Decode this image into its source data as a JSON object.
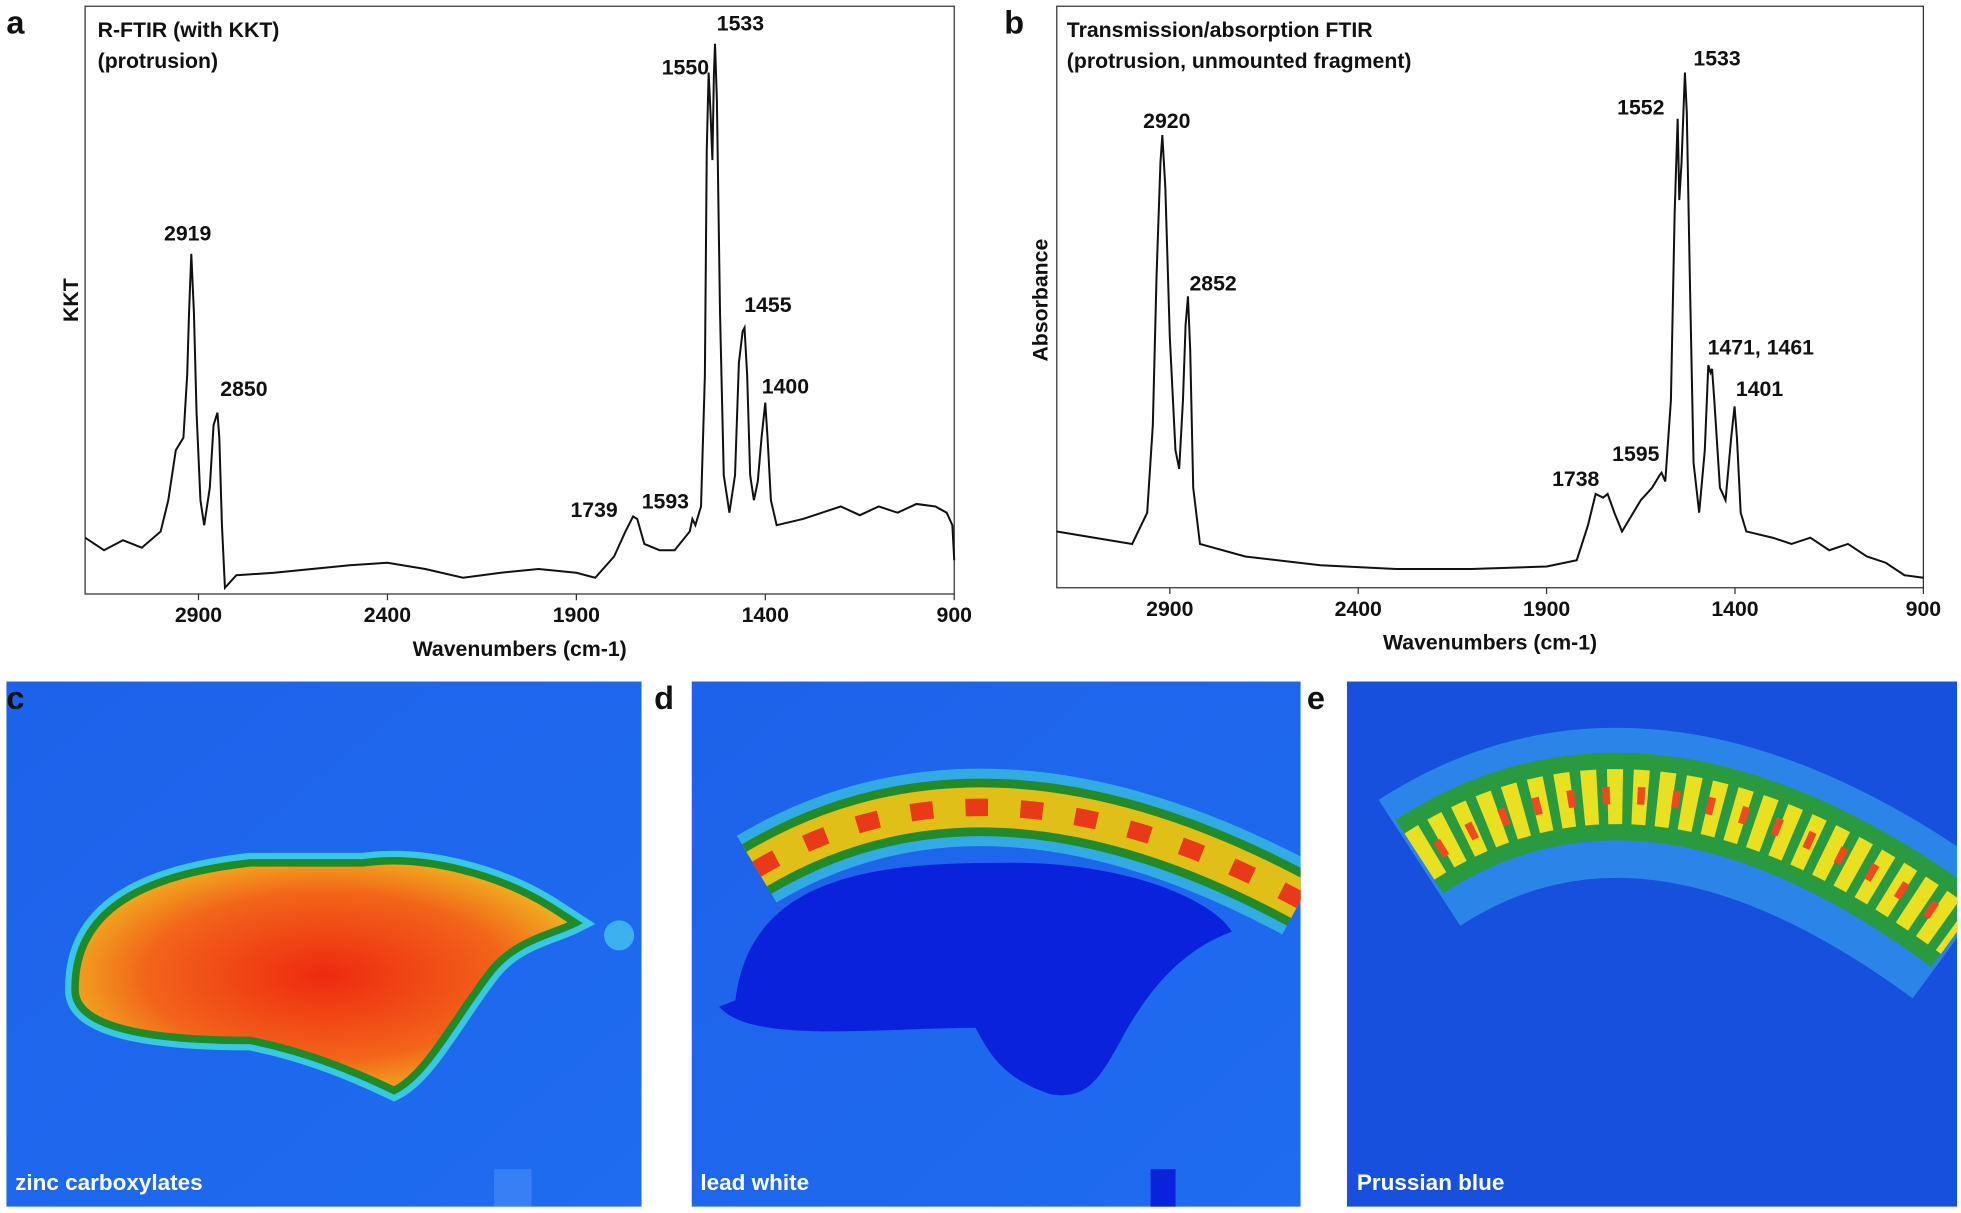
{
  "chart_data": [
    {
      "type": "line",
      "panel": "a",
      "title": [
        "R-FTIR (with KKT)",
        "(protrusion)"
      ],
      "x_label": "Wavenumbers (cm-1)",
      "y_label": "KKT",
      "xlim": [
        3200,
        900
      ],
      "xticks": [
        2900,
        2400,
        1900,
        1400,
        900
      ],
      "ylim": [
        0,
        470
      ],
      "color": "#111111",
      "x": [
        3200,
        3150,
        3100,
        3050,
        3000,
        2980,
        2960,
        2940,
        2930,
        2925,
        2919,
        2912,
        2905,
        2895,
        2885,
        2870,
        2860,
        2850,
        2845,
        2838,
        2830,
        2800,
        2700,
        2600,
        2500,
        2400,
        2300,
        2200,
        2100,
        2000,
        1900,
        1850,
        1800,
        1770,
        1750,
        1739,
        1720,
        1680,
        1640,
        1600,
        1593,
        1585,
        1570,
        1560,
        1555,
        1550,
        1545,
        1540,
        1536,
        1533,
        1528,
        1520,
        1510,
        1495,
        1480,
        1470,
        1460,
        1455,
        1448,
        1440,
        1430,
        1420,
        1410,
        1400,
        1394,
        1385,
        1370,
        1300,
        1250,
        1200,
        1150,
        1100,
        1050,
        1000,
        950,
        920,
        905,
        900
      ],
      "values": [
        45,
        35,
        43,
        37,
        50,
        75,
        115,
        125,
        175,
        225,
        272,
        225,
        145,
        75,
        55,
        85,
        135,
        145,
        125,
        55,
        5,
        15,
        17,
        20,
        23,
        25,
        20,
        13,
        17,
        20,
        17,
        13,
        30,
        50,
        62,
        60,
        40,
        35,
        35,
        50,
        60,
        55,
        70,
        175,
        355,
        417,
        385,
        347,
        415,
        440,
        395,
        225,
        95,
        65,
        95,
        185,
        210,
        213,
        175,
        95,
        75,
        90,
        125,
        153,
        125,
        75,
        55,
        60,
        65,
        70,
        63,
        70,
        65,
        72,
        70,
        65,
        55,
        27
      ],
      "annotations": [
        "1550",
        "1533",
        "2919",
        "2850",
        "1455",
        "1400",
        "1739",
        "1593"
      ]
    },
    {
      "type": "line",
      "panel": "b",
      "title": [
        "Transmission/absorption FTIR",
        "(protrusion, unmounted fragment)"
      ],
      "x_label": "Wavenumbers (cm-1)",
      "y_label": "Absorbance",
      "xlim": [
        3200,
        900
      ],
      "xticks": [
        2900,
        2400,
        1900,
        1400,
        900
      ],
      "ylim": [
        0,
        465
      ],
      "color": "#111111",
      "x": [
        3200,
        3100,
        3000,
        2960,
        2945,
        2935,
        2925,
        2920,
        2912,
        2900,
        2885,
        2875,
        2865,
        2858,
        2852,
        2846,
        2838,
        2820,
        2700,
        2500,
        2300,
        2100,
        1900,
        1820,
        1790,
        1770,
        1750,
        1738,
        1720,
        1700,
        1680,
        1650,
        1620,
        1600,
        1595,
        1585,
        1570,
        1560,
        1552,
        1548,
        1542,
        1533,
        1528,
        1520,
        1510,
        1495,
        1480,
        1471,
        1465,
        1461,
        1455,
        1440,
        1425,
        1410,
        1401,
        1395,
        1385,
        1370,
        1300,
        1250,
        1200,
        1150,
        1100,
        1050,
        1000,
        950,
        900
      ],
      "values": [
        45,
        40,
        35,
        60,
        130,
        250,
        340,
        362,
        320,
        200,
        110,
        95,
        150,
        210,
        233,
        190,
        80,
        35,
        25,
        18,
        15,
        15,
        17,
        22,
        50,
        75,
        72,
        75,
        60,
        45,
        55,
        70,
        80,
        90,
        92,
        85,
        150,
        300,
        375,
        310,
        340,
        412,
        380,
        250,
        100,
        60,
        110,
        178,
        172,
        175,
        150,
        80,
        70,
        120,
        145,
        120,
        60,
        45,
        40,
        35,
        40,
        30,
        35,
        25,
        20,
        10,
        8
      ],
      "annotations": [
        "2920",
        "2852",
        "1552",
        "1533",
        "1471, 1461",
        "1401",
        "1738",
        "1595"
      ]
    }
  ],
  "panels": [
    {
      "letter": "c",
      "caption": "zinc carboxylates"
    },
    {
      "letter": "d",
      "caption": "lead white"
    },
    {
      "letter": "e",
      "caption": "Prussian blue"
    }
  ]
}
